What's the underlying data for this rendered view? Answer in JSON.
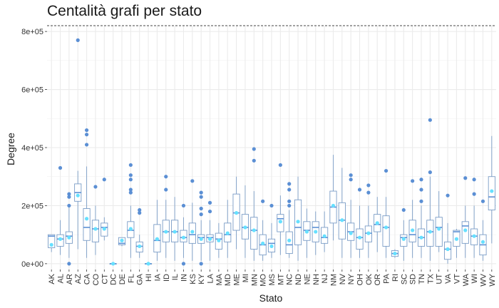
{
  "colors": {
    "box": "#7a9cc6",
    "outlier": "#5b8fd4",
    "mean": "#66e0ff",
    "median": "#5b8fd4",
    "grid": "#ebebeb"
  },
  "chart_data": {
    "type": "boxplot",
    "title": "Centalità grafi per stato",
    "xlabel": "Stato",
    "ylabel": "Degree",
    "ylim": [
      0,
      800000
    ],
    "yticks": [
      0,
      200000,
      400000,
      600000,
      800000
    ],
    "ytick_labels": [
      "0e+00",
      "2e+05",
      "4e+05",
      "6e+05",
      "8e+05"
    ],
    "grid": true,
    "categories": [
      "AK",
      "AL",
      "AR",
      "AZ",
      "CA",
      "CO",
      "CT",
      "DC",
      "DE",
      "FL",
      "GA",
      "HI",
      "IA",
      "ID",
      "IL",
      "IN",
      "KS",
      "KY",
      "LA",
      "MA",
      "MD",
      "ME",
      "MI",
      "MN",
      "MO",
      "MS",
      "MT",
      "NC",
      "ND",
      "NE",
      "NH",
      "NJ",
      "NM",
      "NV",
      "NY",
      "OH",
      "OK",
      "OR",
      "PA",
      "RI",
      "SC",
      "SD",
      "TN",
      "TX",
      "UT",
      "VA",
      "VT",
      "WA",
      "WI",
      "WV",
      "WY"
    ],
    "boxes": [
      {
        "state": "AK",
        "min": 40000,
        "q1": 55000,
        "median": 95000,
        "q3": 100000,
        "max": 100000,
        "mean": 65000,
        "outliers": []
      },
      {
        "state": "AL",
        "min": 30000,
        "q1": 60000,
        "median": 85000,
        "q3": 100000,
        "max": 150000,
        "mean": 85000,
        "outliers": [
          330000
        ]
      },
      {
        "state": "AR",
        "min": 20000,
        "q1": 70000,
        "median": 95000,
        "q3": 110000,
        "max": 200000,
        "mean": 90000,
        "outliers": [
          0,
          200000,
          230000,
          240000
        ]
      },
      {
        "state": "AZ",
        "min": 50000,
        "q1": 215000,
        "median": 245000,
        "q3": 275000,
        "max": 320000,
        "mean": 235000,
        "outliers": [
          770000
        ]
      },
      {
        "state": "CA",
        "min": 20000,
        "q1": 80000,
        "median": 125000,
        "q3": 190000,
        "max": 335000,
        "mean": 155000,
        "outliers": [
          410000,
          445000,
          460000
        ]
      },
      {
        "state": "CO",
        "min": 30000,
        "q1": 75000,
        "median": 120000,
        "q3": 150000,
        "max": 200000,
        "mean": 120000,
        "outliers": [
          265000
        ]
      },
      {
        "state": "CT",
        "min": 80000,
        "q1": 95000,
        "median": 125000,
        "q3": 140000,
        "max": 160000,
        "mean": 120000,
        "outliers": [
          290000
        ]
      },
      {
        "state": "DC",
        "min": 0,
        "q1": 0,
        "median": 0,
        "q3": 0,
        "max": 0,
        "mean": 0,
        "outliers": []
      },
      {
        "state": "DE",
        "min": 60000,
        "q1": 65000,
        "median": 70000,
        "q3": 90000,
        "max": 90000,
        "mean": 80000,
        "outliers": []
      },
      {
        "state": "FL",
        "min": 20000,
        "q1": 90000,
        "median": 115000,
        "q3": 145000,
        "max": 200000,
        "mean": 120000,
        "outliers": [
          245000,
          255000,
          290000,
          305000,
          340000
        ]
      },
      {
        "state": "GA",
        "min": 20000,
        "q1": 40000,
        "median": 60000,
        "q3": 75000,
        "max": 100000,
        "mean": 60000,
        "outliers": [
          175000,
          185000
        ]
      },
      {
        "state": "HI",
        "min": 0,
        "q1": 0,
        "median": 0,
        "q3": 0,
        "max": 0,
        "mean": 0,
        "outliers": []
      },
      {
        "state": "IA",
        "min": 10000,
        "q1": 40000,
        "median": 80000,
        "q3": 135000,
        "max": 220000,
        "mean": 85000,
        "outliers": []
      },
      {
        "state": "ID",
        "min": 20000,
        "q1": 75000,
        "median": 110000,
        "q3": 150000,
        "max": 220000,
        "mean": 110000,
        "outliers": [
          255000,
          300000
        ]
      },
      {
        "state": "IL",
        "min": 10000,
        "q1": 75000,
        "median": 110000,
        "q3": 150000,
        "max": 230000,
        "mean": 110000,
        "outliers": []
      },
      {
        "state": "IN",
        "min": 20000,
        "q1": 75000,
        "median": 90000,
        "q3": 115000,
        "max": 160000,
        "mean": 90000,
        "outliers": [
          0,
          200000
        ]
      },
      {
        "state": "KS",
        "min": 10000,
        "q1": 70000,
        "median": 100000,
        "q3": 140000,
        "max": 210000,
        "mean": 110000,
        "outliers": [
          285000
        ]
      },
      {
        "state": "KY",
        "min": 10000,
        "q1": 70000,
        "median": 90000,
        "q3": 100000,
        "max": 150000,
        "mean": 85000,
        "outliers": [
          0,
          170000,
          190000,
          230000,
          245000
        ]
      },
      {
        "state": "LA",
        "min": 10000,
        "q1": 75000,
        "median": 90000,
        "q3": 100000,
        "max": 150000,
        "mean": 85000,
        "outliers": [
          180000,
          210000
        ]
      },
      {
        "state": "MA",
        "min": 20000,
        "q1": 50000,
        "median": 85000,
        "q3": 105000,
        "max": 140000,
        "mean": 80000,
        "outliers": []
      },
      {
        "state": "MD",
        "min": 20000,
        "q1": 75000,
        "median": 100000,
        "q3": 140000,
        "max": 220000,
        "mean": 105000,
        "outliers": []
      },
      {
        "state": "ME",
        "min": 50000,
        "q1": 115000,
        "median": 175000,
        "q3": 240000,
        "max": 300000,
        "mean": 175000,
        "outliers": []
      },
      {
        "state": "MI",
        "min": 20000,
        "q1": 85000,
        "median": 125000,
        "q3": 170000,
        "max": 270000,
        "mean": 125000,
        "outliers": []
      },
      {
        "state": "MN",
        "min": 10000,
        "q1": 50000,
        "median": 115000,
        "q3": 160000,
        "max": 250000,
        "mean": 115000,
        "outliers": [
          355000,
          395000
        ]
      },
      {
        "state": "MO",
        "min": 10000,
        "q1": 30000,
        "median": 65000,
        "q3": 100000,
        "max": 150000,
        "mean": 70000,
        "outliers": [
          215000
        ]
      },
      {
        "state": "MS",
        "min": 20000,
        "q1": 40000,
        "median": 70000,
        "q3": 85000,
        "max": 140000,
        "mean": 60000,
        "outliers": [
          200000
        ]
      },
      {
        "state": "MT",
        "min": 30000,
        "q1": 110000,
        "median": 155000,
        "q3": 170000,
        "max": 235000,
        "mean": 145000,
        "outliers": [
          340000
        ]
      },
      {
        "state": "NC",
        "min": 20000,
        "q1": 35000,
        "median": 65000,
        "q3": 110000,
        "max": 185000,
        "mean": 80000,
        "outliers": [
          200000,
          215000,
          255000,
          275000
        ]
      },
      {
        "state": "ND",
        "min": 10000,
        "q1": 65000,
        "median": 125000,
        "q3": 220000,
        "max": 300000,
        "mean": 145000,
        "outliers": []
      },
      {
        "state": "NE",
        "min": 20000,
        "q1": 80000,
        "median": 115000,
        "q3": 145000,
        "max": 190000,
        "mean": 110000,
        "outliers": []
      },
      {
        "state": "NH",
        "min": 30000,
        "q1": 75000,
        "median": 125000,
        "q3": 145000,
        "max": 180000,
        "mean": 110000,
        "outliers": []
      },
      {
        "state": "NJ",
        "min": 40000,
        "q1": 70000,
        "median": 90000,
        "q3": 125000,
        "max": 180000,
        "mean": 95000,
        "outliers": []
      },
      {
        "state": "NM",
        "min": 80000,
        "q1": 140000,
        "median": 195000,
        "q3": 250000,
        "max": 375000,
        "mean": 200000,
        "outliers": []
      },
      {
        "state": "NV",
        "min": 20000,
        "q1": 85000,
        "median": 150000,
        "q3": 210000,
        "max": 330000,
        "mean": 150000,
        "outliers": []
      },
      {
        "state": "NY",
        "min": 20000,
        "q1": 80000,
        "median": 110000,
        "q3": 140000,
        "max": 220000,
        "mean": 105000,
        "outliers": [
          290000,
          305000
        ]
      },
      {
        "state": "OH",
        "min": 20000,
        "q1": 50000,
        "median": 90000,
        "q3": 120000,
        "max": 200000,
        "mean": 90000,
        "outliers": [
          255000
        ]
      },
      {
        "state": "OK",
        "min": 20000,
        "q1": 75000,
        "median": 105000,
        "q3": 130000,
        "max": 200000,
        "mean": 105000,
        "outliers": [
          245000,
          270000
        ]
      },
      {
        "state": "OR",
        "min": 40000,
        "q1": 110000,
        "median": 135000,
        "q3": 170000,
        "max": 230000,
        "mean": 140000,
        "outliers": []
      },
      {
        "state": "PA",
        "min": 20000,
        "q1": 60000,
        "median": 125000,
        "q3": 165000,
        "max": 230000,
        "mean": 125000,
        "outliers": [
          320000
        ]
      },
      {
        "state": "RI",
        "min": 20000,
        "q1": 25000,
        "median": 35000,
        "q3": 45000,
        "max": 50000,
        "mean": 35000,
        "outliers": []
      },
      {
        "state": "SC",
        "min": 10000,
        "q1": 60000,
        "median": 90000,
        "q3": 100000,
        "max": 150000,
        "mean": 85000,
        "outliers": [
          185000
        ]
      },
      {
        "state": "SD",
        "min": 20000,
        "q1": 75000,
        "median": 100000,
        "q3": 150000,
        "max": 220000,
        "mean": 115000,
        "outliers": [
          285000
        ]
      },
      {
        "state": "TN",
        "min": 20000,
        "q1": 60000,
        "median": 90000,
        "q3": 120000,
        "max": 200000,
        "mean": 90000,
        "outliers": [
          215000,
          255000,
          290000
        ]
      },
      {
        "state": "TX",
        "min": 10000,
        "q1": 60000,
        "median": 110000,
        "q3": 150000,
        "max": 300000,
        "mean": 110000,
        "outliers": [
          315000,
          495000
        ]
      },
      {
        "state": "UT",
        "min": 40000,
        "q1": 60000,
        "median": 125000,
        "q3": 160000,
        "max": 250000,
        "mean": 120000,
        "outliers": []
      },
      {
        "state": "VA",
        "min": 0,
        "q1": 15000,
        "median": 50000,
        "q3": 75000,
        "max": 140000,
        "mean": 50000,
        "outliers": [
          235000
        ]
      },
      {
        "state": "VT",
        "min": 20000,
        "q1": 60000,
        "median": 110000,
        "q3": 115000,
        "max": 120000,
        "mean": 85000,
        "outliers": []
      },
      {
        "state": "WA",
        "min": 20000,
        "q1": 70000,
        "median": 130000,
        "q3": 145000,
        "max": 200000,
        "mean": 115000,
        "outliers": [
          295000
        ]
      },
      {
        "state": "WI",
        "min": 20000,
        "q1": 65000,
        "median": 95000,
        "q3": 120000,
        "max": 200000,
        "mean": 95000,
        "outliers": [
          240000,
          290000
        ]
      },
      {
        "state": "WV",
        "min": 10000,
        "q1": 30000,
        "median": 65000,
        "q3": 100000,
        "max": 150000,
        "mean": 75000,
        "outliers": [
          215000
        ]
      },
      {
        "state": "WY",
        "min": 70000,
        "q1": 185000,
        "median": 230000,
        "q3": 300000,
        "max": 440000,
        "mean": 250000,
        "outliers": []
      }
    ]
  }
}
